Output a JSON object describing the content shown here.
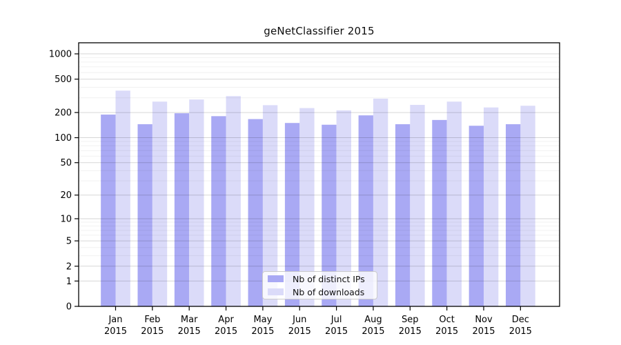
{
  "chart_data": {
    "type": "bar",
    "title": "geNetClassifier 2015",
    "categories": [
      "Jan",
      "Feb",
      "Mar",
      "Apr",
      "May",
      "Jun",
      "Jul",
      "Aug",
      "Sep",
      "Oct",
      "Nov",
      "Dec"
    ],
    "year_label": "2015",
    "series": [
      {
        "name": "Nb of distinct IPs",
        "color": "#a9a9f4",
        "values": [
          189,
          145,
          196,
          181,
          167,
          150,
          143,
          185,
          145,
          163,
          139,
          145
        ]
      },
      {
        "name": "Nb of downloads",
        "color": "#dbdbf9",
        "values": [
          365,
          270,
          286,
          314,
          245,
          226,
          212,
          293,
          247,
          270,
          230,
          241
        ]
      }
    ],
    "y_scale": "log1p",
    "y_ticks": [
      0,
      1,
      2,
      5,
      10,
      20,
      50,
      100,
      200,
      500,
      1000
    ],
    "ylim": [
      0,
      1360
    ],
    "xlabel": "",
    "ylabel": "",
    "grid": "horizontal major+minor",
    "legend_position": "lower center",
    "colors": {
      "grid_major": "#d6d6d6",
      "grid_minor": "#efefef",
      "axis": "#000000",
      "background": "#ffffff"
    }
  }
}
